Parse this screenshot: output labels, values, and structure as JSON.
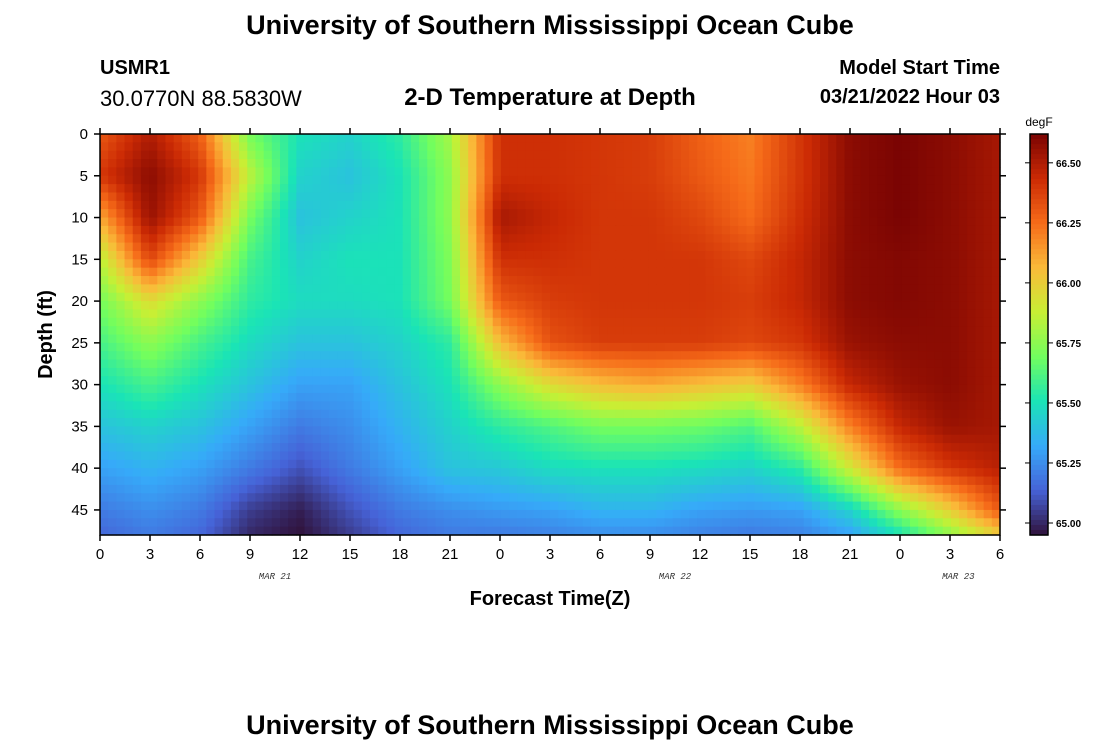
{
  "header": {
    "title": "University of Southern Mississippi Ocean Cube",
    "station_id": "USMR1",
    "station_coords": "30.0770N  88.5830W",
    "subtitle": "2-D Temperature at Depth",
    "model_start_label": "Model Start Time",
    "model_start_value": "03/21/2022 Hour 03"
  },
  "footer": {
    "title": "University of Southern Mississippi Ocean Cube"
  },
  "chart_data": {
    "type": "heatmap",
    "title": "2-D Temperature at Depth",
    "xlabel": "Forecast Time(Z)",
    "ylabel": "Depth (ft)",
    "x_tick_labels": [
      "0",
      "3",
      "6",
      "9",
      "12",
      "15",
      "18",
      "21",
      "0",
      "3",
      "6",
      "9",
      "12",
      "15",
      "18",
      "21",
      "0",
      "3",
      "6"
    ],
    "x_date_labels": [
      "MAR 21",
      "MAR 22",
      "MAR 23"
    ],
    "y_tick_labels": [
      "0",
      "5",
      "10",
      "15",
      "20",
      "25",
      "30",
      "35",
      "40",
      "45"
    ],
    "xlim_hours": [
      0,
      54
    ],
    "ylim_ft": [
      0,
      48
    ],
    "y_inverted": true,
    "colorbar": {
      "unit": "degF",
      "ticks": [
        "65.00",
        "65.25",
        "65.50",
        "65.75",
        "66.00",
        "66.25",
        "66.50"
      ],
      "range": [
        64.95,
        66.62
      ],
      "colormap": [
        "#30123b",
        "#4662d7",
        "#36aaf9",
        "#1ae4b6",
        "#72fe5e",
        "#c8ef34",
        "#faba39",
        "#f66b19",
        "#cb2a04",
        "#7a0403"
      ]
    },
    "x_hours": [
      0,
      3,
      6,
      9,
      12,
      15,
      18,
      21,
      24,
      27,
      30,
      33,
      36,
      39,
      42,
      45,
      48,
      51,
      54
    ],
    "depths_ft": [
      0,
      5,
      10,
      15,
      20,
      25,
      30,
      35,
      40,
      45,
      48
    ],
    "temperature_degF": [
      [
        66.3,
        66.5,
        66.28,
        65.7,
        65.5,
        65.45,
        65.55,
        65.8,
        66.42,
        66.42,
        66.4,
        66.38,
        66.28,
        66.2,
        66.4,
        66.58,
        66.62,
        66.58,
        66.52
      ],
      [
        66.4,
        66.58,
        66.4,
        65.85,
        65.45,
        65.4,
        65.5,
        65.75,
        66.42,
        66.42,
        66.4,
        66.38,
        66.3,
        66.22,
        66.4,
        66.58,
        66.62,
        66.58,
        66.52
      ],
      [
        66.1,
        66.55,
        66.3,
        65.7,
        65.4,
        65.45,
        65.5,
        65.75,
        66.52,
        66.45,
        66.4,
        66.4,
        66.35,
        66.25,
        66.42,
        66.58,
        66.62,
        66.58,
        66.52
      ],
      [
        65.85,
        66.35,
        66.0,
        65.6,
        65.45,
        65.5,
        65.5,
        65.72,
        66.42,
        66.42,
        66.4,
        66.4,
        66.4,
        66.35,
        66.45,
        66.58,
        66.6,
        66.58,
        66.52
      ],
      [
        65.7,
        65.95,
        65.75,
        65.55,
        65.48,
        65.48,
        65.5,
        65.7,
        66.3,
        66.38,
        66.4,
        66.4,
        66.4,
        66.38,
        66.45,
        66.58,
        66.6,
        66.58,
        66.52
      ],
      [
        65.6,
        65.75,
        65.6,
        65.48,
        65.4,
        65.4,
        65.45,
        65.55,
        66.05,
        66.32,
        66.38,
        66.38,
        66.38,
        66.35,
        66.4,
        66.55,
        66.58,
        66.58,
        66.52
      ],
      [
        65.5,
        65.6,
        65.5,
        65.4,
        65.3,
        65.3,
        65.4,
        65.5,
        65.75,
        65.95,
        66.05,
        66.1,
        66.05,
        66.0,
        66.2,
        66.45,
        66.55,
        66.58,
        66.52
      ],
      [
        65.4,
        65.45,
        65.4,
        65.3,
        65.2,
        65.25,
        65.35,
        65.45,
        65.55,
        65.62,
        65.7,
        65.7,
        65.68,
        65.62,
        65.85,
        66.2,
        66.45,
        66.55,
        66.52
      ],
      [
        65.3,
        65.35,
        65.3,
        65.2,
        65.1,
        65.2,
        65.3,
        65.4,
        65.42,
        65.48,
        65.5,
        65.5,
        65.48,
        65.45,
        65.55,
        65.9,
        66.25,
        66.4,
        66.48
      ],
      [
        65.2,
        65.25,
        65.2,
        65.05,
        64.98,
        65.1,
        65.2,
        65.25,
        65.28,
        65.3,
        65.35,
        65.35,
        65.3,
        65.28,
        65.3,
        65.45,
        65.75,
        66.0,
        66.3
      ],
      [
        65.15,
        65.2,
        65.15,
        65.0,
        64.95,
        65.05,
        65.15,
        65.2,
        65.2,
        65.22,
        65.25,
        65.25,
        65.22,
        65.2,
        65.22,
        65.3,
        65.5,
        65.75,
        66.0
      ]
    ]
  }
}
